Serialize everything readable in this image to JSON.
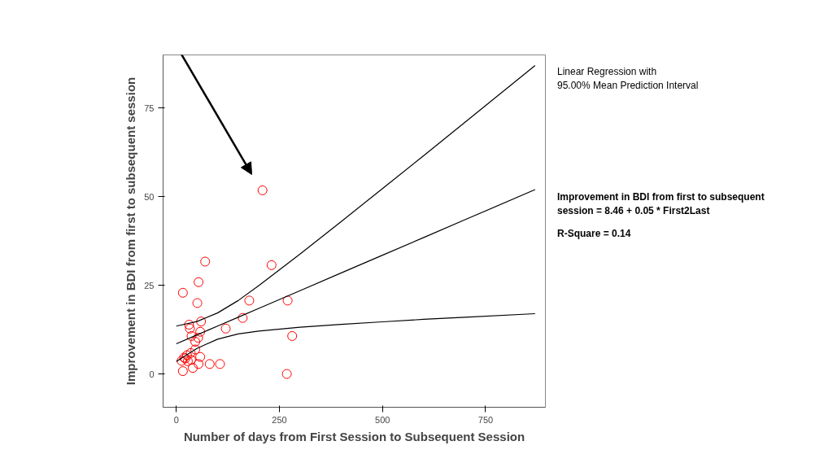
{
  "chart_data": {
    "type": "scatter",
    "xlabel": "Number of days from First Session to Subsequent Session",
    "ylabel": "Improvement in BDI from first to subsequent session",
    "xlim": [
      -32,
      895
    ],
    "ylim": [
      -9.4,
      90
    ],
    "xticks": [
      0,
      250,
      500,
      750
    ],
    "yticks": [
      0,
      25,
      50,
      75
    ],
    "grid": false,
    "annotations": [
      "Linear Regression with\n95.00% Mean Prediction Interval",
      "Improvement in BDI from first to subsequent\nsession = 8.46 + 0.05 * First2Last",
      "R-Square = 0.14"
    ],
    "series": [
      {
        "marker": "circle",
        "color": "#ff0000",
        "x": [
          209,
          70,
          231,
          54,
          16,
          51,
          177,
          270,
          161,
          60,
          31,
          33,
          120,
          58,
          37,
          281,
          53,
          46,
          46,
          35,
          26,
          19,
          58,
          13,
          28,
          36,
          54,
          81,
          106,
          40,
          16,
          268,
          22
        ],
        "values": [
          51.8,
          31.7,
          30.7,
          25.9,
          22.9,
          20.0,
          20.7,
          20.7,
          15.8,
          14.8,
          13.9,
          12.8,
          12.8,
          11.9,
          10.7,
          10.7,
          10.2,
          9.1,
          6.9,
          5.9,
          5.3,
          4.6,
          4.8,
          3.7,
          3.6,
          4.0,
          2.8,
          2.8,
          2.8,
          1.7,
          0.8,
          0.0,
          4.4
        ]
      },
      {
        "type": "line",
        "marker": "none",
        "color": "#000000",
        "x": [
          0,
          50,
          100,
          150,
          200,
          300,
          400,
          500,
          600,
          700,
          870
        ],
        "values": [
          8.5,
          11,
          13.5,
          16,
          18.5,
          23.5,
          28.5,
          33.5,
          38.5,
          43.5,
          52
        ]
      },
      {
        "type": "line",
        "marker": "none",
        "color": "#000000",
        "x": [
          0,
          50,
          100,
          150,
          200,
          300,
          400,
          500,
          600,
          700,
          870
        ],
        "values": [
          3.5,
          7.2,
          9.8,
          11.3,
          12.1,
          13.2,
          14,
          14.7,
          15.4,
          16,
          17
        ]
      },
      {
        "type": "line",
        "marker": "none",
        "color": "#000000",
        "x": [
          0,
          50,
          100,
          150,
          200,
          300,
          400,
          500,
          600,
          700,
          870
        ],
        "values": [
          13.5,
          14.8,
          17.2,
          20.7,
          24.9,
          33.8,
          43,
          52.3,
          61.6,
          71,
          87
        ]
      }
    ]
  }
}
